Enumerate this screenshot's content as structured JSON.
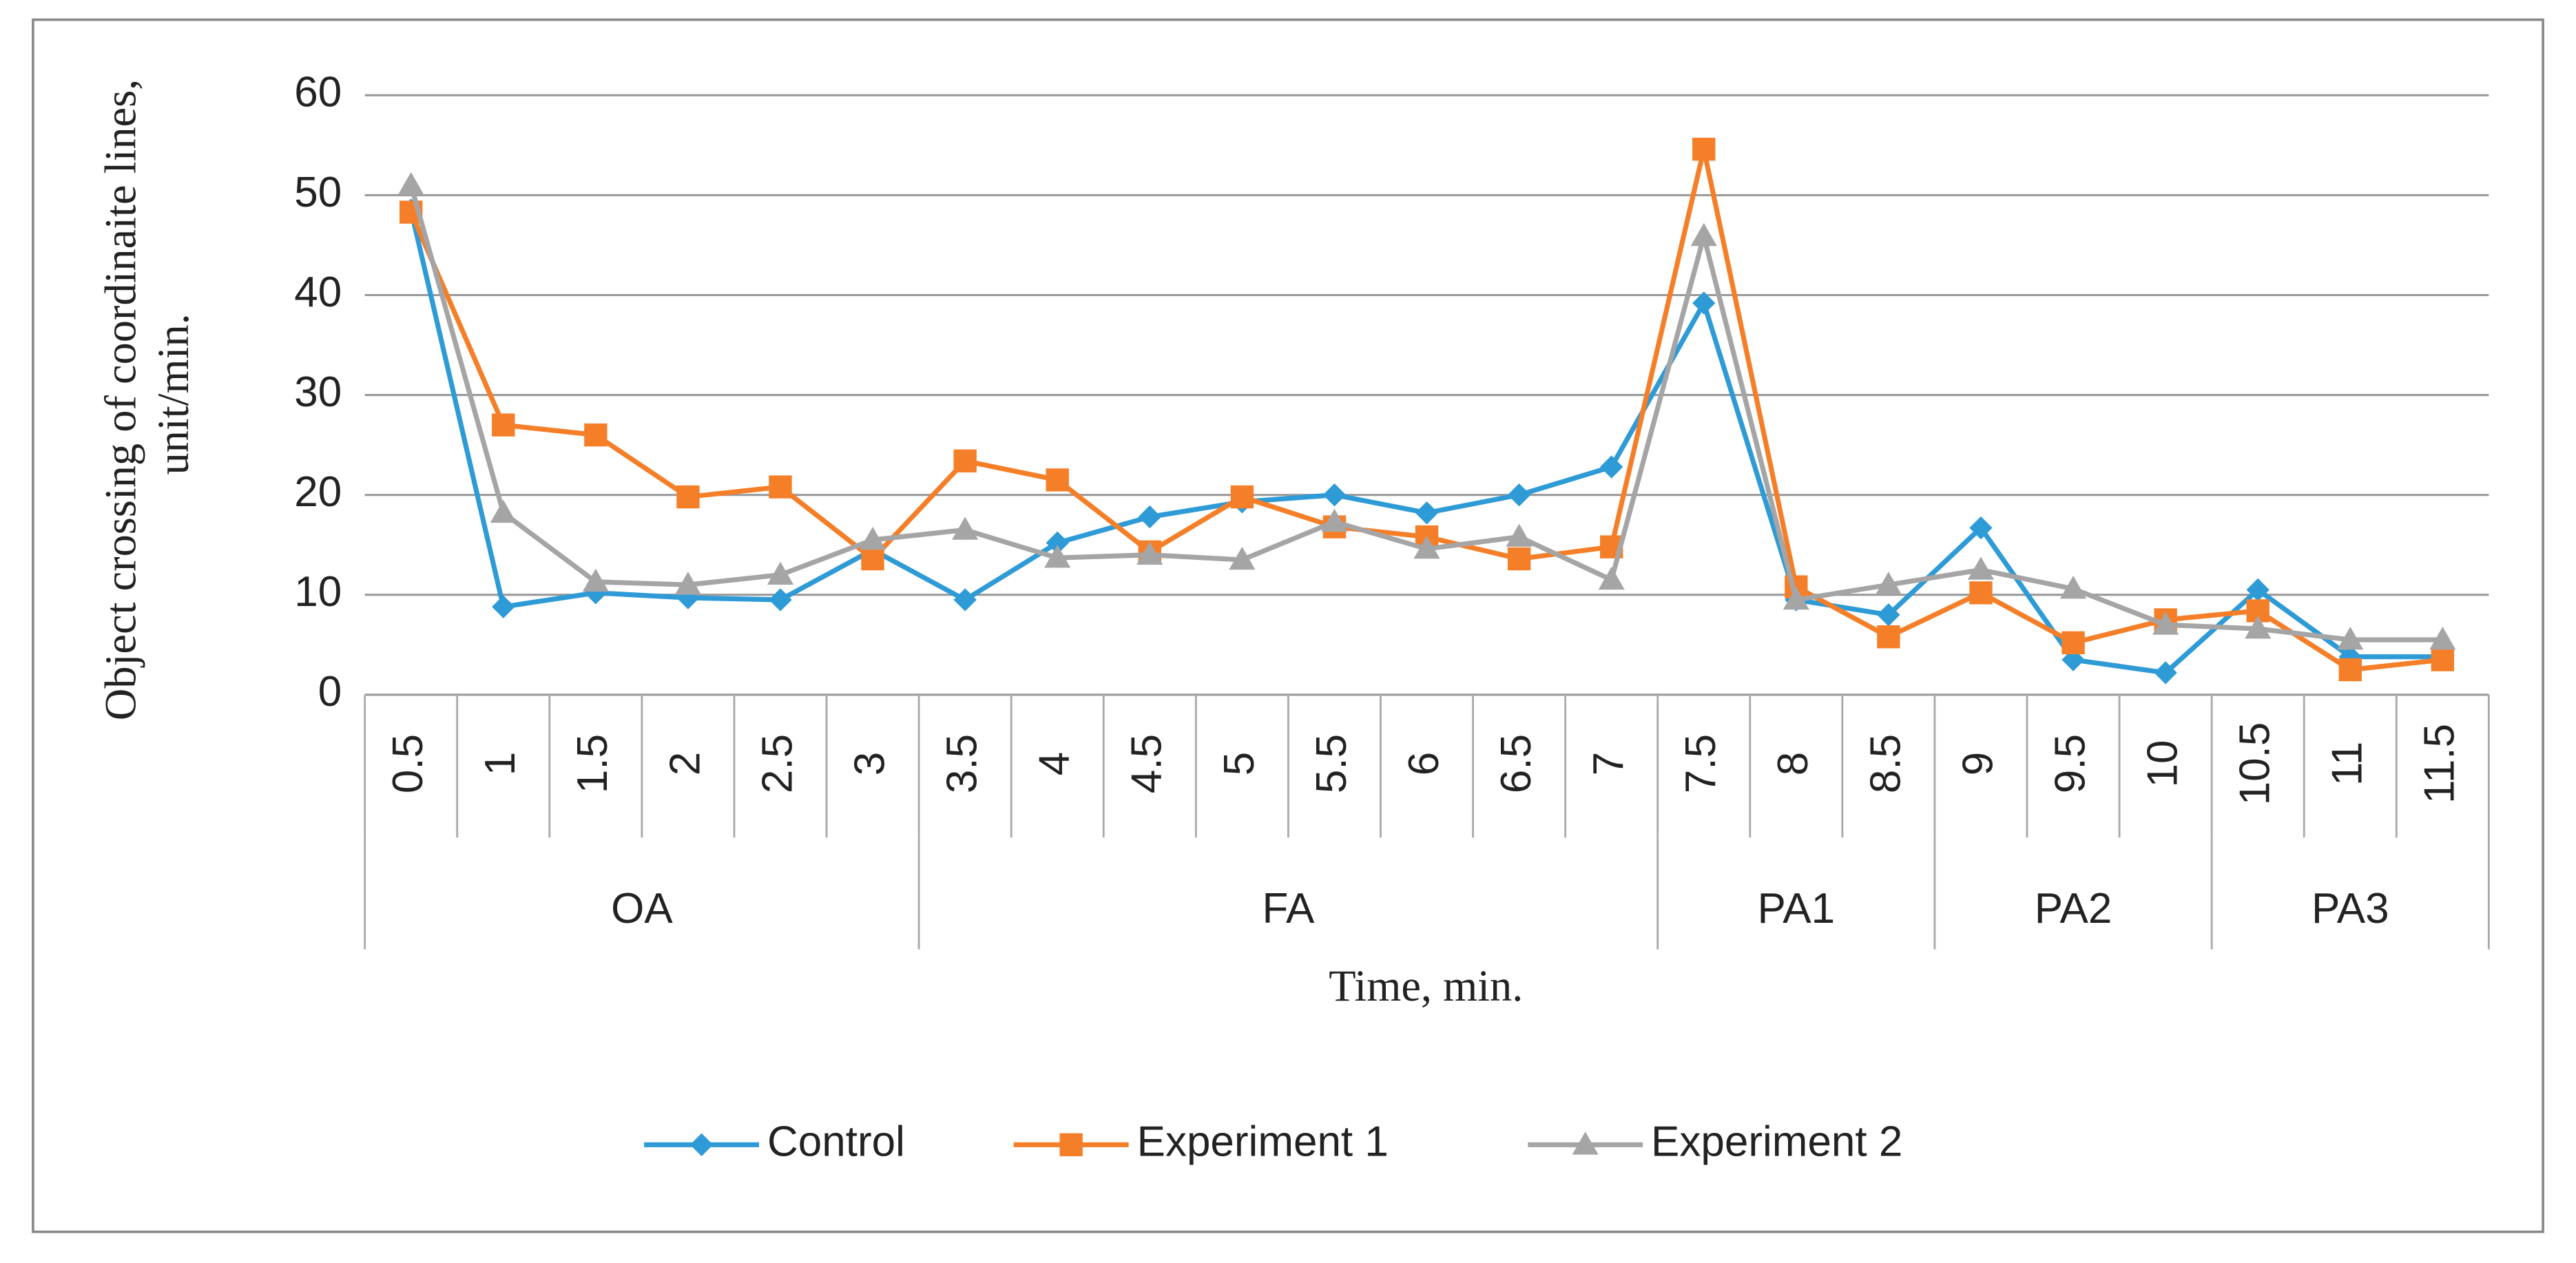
{
  "chart_data": {
    "type": "line",
    "ylabel": [
      "Object crossing of coordinaite lines,",
      "unit/min."
    ],
    "xlabel": "Time, min.",
    "categories": [
      "0.5",
      "1",
      "1.5",
      "2",
      "2.5",
      "3",
      "3.5",
      "4",
      "4.5",
      "5",
      "5.5",
      "6",
      "6.5",
      "7",
      "7.5",
      "8",
      "8.5",
      "9",
      "9.5",
      "10",
      "10.5",
      "11",
      "11.5"
    ],
    "groups": [
      {
        "label": "OA",
        "span": 6
      },
      {
        "label": "FA",
        "span": 8
      },
      {
        "label": "PA1",
        "span": 3
      },
      {
        "label": "PA2",
        "span": 3
      },
      {
        "label": "PA3",
        "span": 3
      }
    ],
    "series": [
      {
        "name": "Control",
        "color": "#2e9bd6",
        "marker": "diamond",
        "values": [
          48.5,
          8.8,
          10.2,
          9.7,
          9.5,
          14.5,
          9.5,
          15.2,
          17.8,
          19.3,
          20,
          18.2,
          20,
          22.8,
          39.2,
          9.5,
          8,
          16.7,
          3.5,
          2.2,
          10.5,
          3.8,
          3.8
        ]
      },
      {
        "name": "Experiment 1",
        "color": "#f57f29",
        "marker": "square",
        "values": [
          48.3,
          27,
          26,
          19.8,
          20.8,
          13.6,
          23.4,
          21.5,
          14.3,
          19.8,
          16.8,
          15.8,
          13.6,
          14.8,
          54.6,
          10.8,
          5.8,
          10.2,
          5.2,
          7.5,
          8.4,
          2.5,
          3.5
        ]
      },
      {
        "name": "Experiment 2",
        "color": "#a5a5a5",
        "marker": "triangle",
        "values": [
          51,
          18.2,
          11.3,
          11,
          12,
          15.5,
          16.5,
          13.7,
          14,
          13.5,
          17.3,
          14.6,
          15.8,
          11.5,
          45.9,
          9.5,
          11,
          12.5,
          10.6,
          7,
          6.6,
          5.5,
          5.5
        ]
      }
    ],
    "ylim": [
      0,
      60
    ],
    "yticks": [
      0,
      10,
      20,
      30,
      40,
      50,
      60
    ],
    "grid": true,
    "legend": "bottom"
  }
}
